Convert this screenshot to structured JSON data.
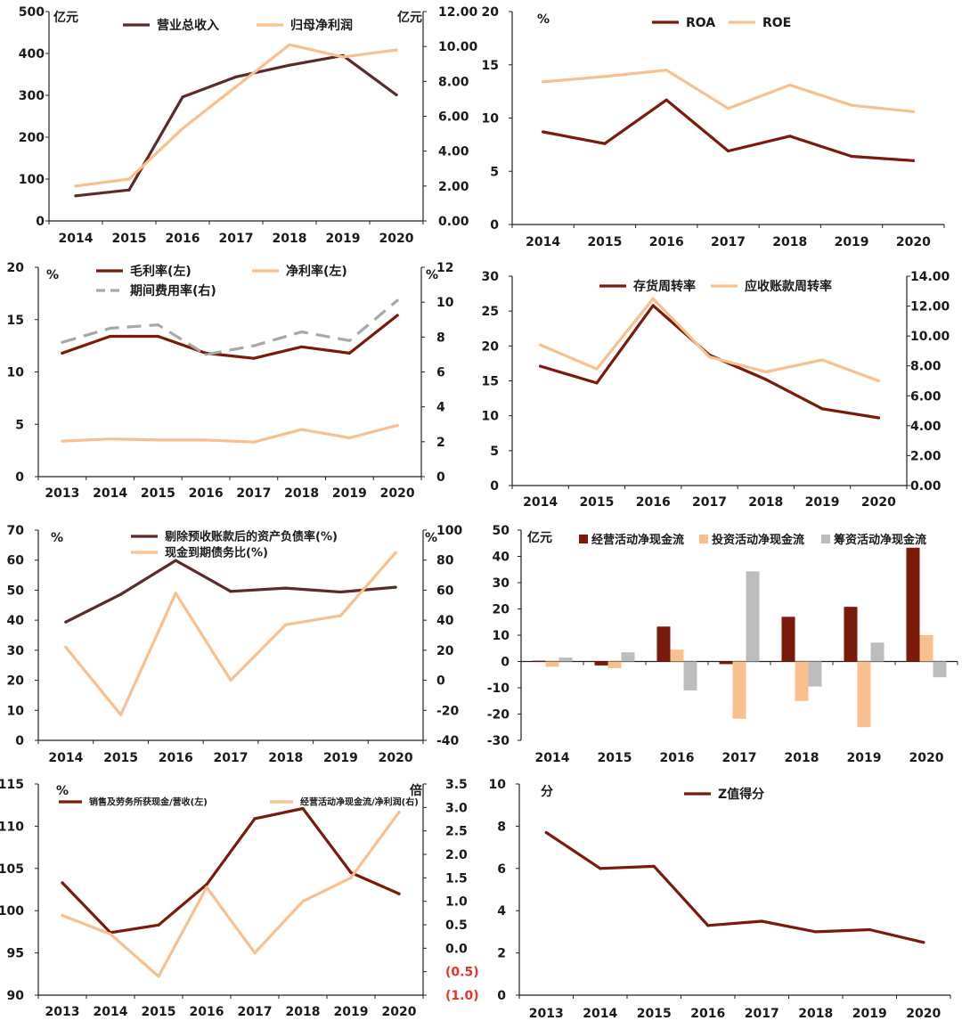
{
  "colors": {
    "dark_red": "#7a1a0a",
    "maroon": "#5c2a2a",
    "peach": "#f8c08e",
    "gray": "#bdbdbd",
    "gray_dash": "#a8a8a8",
    "neg_red": "#e8322a",
    "axis": "#222222"
  },
  "chart_data": [
    {
      "id": "revenue-profit",
      "type": "line",
      "x": [
        "2014",
        "2015",
        "2016",
        "2017",
        "2018",
        "2019",
        "2020"
      ],
      "unit_left": "亿元",
      "unit_right": "亿元",
      "yleft": {
        "min": 0,
        "max": 500,
        "ticks": [
          "0",
          "100",
          "200",
          "300",
          "400",
          "500"
        ]
      },
      "yright": {
        "min": 0,
        "max": 12,
        "ticks": [
          "0.00",
          "2.00",
          "4.00",
          "6.00",
          "8.00",
          "10.00",
          "12.00"
        ]
      },
      "series": [
        {
          "name": "营业总收入",
          "axis": "left",
          "color": "maroon",
          "values": [
            60,
            74,
            296,
            344,
            372,
            395,
            301
          ]
        },
        {
          "name": "归母净利润",
          "axis": "right",
          "color": "peach",
          "values": [
            2.0,
            2.4,
            5.3,
            7.7,
            10.1,
            9.4,
            9.8
          ]
        }
      ]
    },
    {
      "id": "roa-roe",
      "type": "line",
      "x": [
        "2014",
        "2015",
        "2016",
        "2017",
        "2018",
        "2019",
        "2020"
      ],
      "unit_left": "%",
      "yleft": {
        "min": 0,
        "max": 20,
        "ticks": [
          "0",
          "5",
          "10",
          "15",
          "20"
        ]
      },
      "series": [
        {
          "name": "ROA",
          "axis": "left",
          "color": "dark_red",
          "values": [
            8.7,
            7.6,
            11.7,
            6.9,
            8.3,
            6.4,
            6.0
          ]
        },
        {
          "name": "ROE",
          "axis": "left",
          "color": "peach",
          "values": [
            13.4,
            13.9,
            14.5,
            10.9,
            13.1,
            11.2,
            10.6
          ]
        }
      ]
    },
    {
      "id": "margins",
      "type": "line",
      "x": [
        "2013",
        "2014",
        "2015",
        "2016",
        "2017",
        "2018",
        "2019",
        "2020"
      ],
      "unit_left": "%",
      "unit_right": "%",
      "yleft": {
        "min": 0,
        "max": 20,
        "ticks": [
          "0",
          "5",
          "10",
          "15",
          "20"
        ]
      },
      "yright": {
        "min": 0,
        "max": 12,
        "ticks": [
          "0",
          "2",
          "4",
          "6",
          "8",
          "10",
          "12"
        ]
      },
      "series": [
        {
          "name": "毛利率(左)",
          "axis": "left",
          "color": "dark_red",
          "values": [
            11.8,
            13.4,
            13.4,
            11.8,
            11.3,
            12.4,
            11.8,
            15.4
          ]
        },
        {
          "name": "净利率(左)",
          "axis": "left",
          "color": "peach",
          "values": [
            3.4,
            3.6,
            3.5,
            3.5,
            3.3,
            4.5,
            3.7,
            4.9
          ]
        },
        {
          "name": "期间费用率(右)",
          "axis": "right",
          "color": "gray_dash",
          "dashed": true,
          "values": [
            7.7,
            8.5,
            8.7,
            7.0,
            7.5,
            8.3,
            7.8,
            10.1
          ]
        }
      ]
    },
    {
      "id": "turnover",
      "type": "line",
      "x": [
        "2014",
        "2015",
        "2016",
        "2017",
        "2018",
        "2019",
        "2020"
      ],
      "yleft": {
        "min": 0,
        "max": 30,
        "ticks": [
          "0",
          "5",
          "10",
          "15",
          "20",
          "25",
          "30"
        ]
      },
      "yright": {
        "min": 0,
        "max": 14,
        "ticks": [
          "0.00",
          "2.00",
          "4.00",
          "6.00",
          "8.00",
          "10.00",
          "12.00",
          "14.00"
        ]
      },
      "series": [
        {
          "name": "存货周转率",
          "axis": "left",
          "color": "dark_red",
          "values": [
            17.1,
            14.7,
            25.8,
            18.7,
            15.2,
            11.0,
            9.7
          ]
        },
        {
          "name": "应收账款周转率",
          "axis": "right",
          "color": "peach",
          "values": [
            9.4,
            7.8,
            12.5,
            8.6,
            7.6,
            8.4,
            7.0
          ]
        }
      ]
    },
    {
      "id": "debt",
      "type": "line",
      "x": [
        "2014",
        "2015",
        "2016",
        "2017",
        "2018",
        "2019",
        "2020"
      ],
      "unit_left": "%",
      "unit_right": "%",
      "yleft": {
        "min": 0,
        "max": 70,
        "ticks": [
          "0",
          "10",
          "20",
          "30",
          "40",
          "50",
          "60",
          "70"
        ]
      },
      "yright": {
        "min": -40,
        "max": 100,
        "ticks": [
          "-40",
          "-20",
          "0",
          "20",
          "40",
          "60",
          "80",
          "100"
        ]
      },
      "series": [
        {
          "name": "剔除预收账款后的资产负债率(%)",
          "axis": "left",
          "color": "maroon",
          "values": [
            39.4,
            48.6,
            59.9,
            49.6,
            50.7,
            49.4,
            51.0
          ]
        },
        {
          "name": "现金到期债务比(%)",
          "axis": "right",
          "color": "peach",
          "values": [
            22,
            -23,
            58,
            0,
            37,
            43,
            85
          ]
        }
      ]
    },
    {
      "id": "cashflow",
      "type": "bar",
      "categories": [
        "2014",
        "2015",
        "2016",
        "2017",
        "2018",
        "2019",
        "2020"
      ],
      "unit_left": "亿元",
      "yleft": {
        "min": -30,
        "max": 50,
        "ticks": [
          "-30",
          "-20",
          "-10",
          "0",
          "10",
          "20",
          "30",
          "40",
          "50"
        ]
      },
      "series": [
        {
          "name": "经营活动净现金流",
          "color": "dark_red",
          "values": [
            0.3,
            -1.5,
            13.3,
            -1.0,
            17.0,
            20.8,
            43.3
          ]
        },
        {
          "name": "投资活动净现金流",
          "color": "peach",
          "values": [
            -2.0,
            -2.5,
            4.5,
            -21.8,
            -15.0,
            -25.0,
            10.0
          ]
        },
        {
          "name": "筹资活动净现金流",
          "color": "gray",
          "values": [
            1.5,
            3.5,
            -11.0,
            34.3,
            -9.5,
            7.2,
            -6.0
          ]
        }
      ]
    },
    {
      "id": "cash-ratio",
      "type": "line",
      "x": [
        "2013",
        "2014",
        "2015",
        "2016",
        "2017",
        "2018",
        "2019",
        "2020"
      ],
      "unit_left": "%",
      "unit_right": "倍",
      "yleft": {
        "min": 90,
        "max": 115,
        "ticks": [
          "90",
          "95",
          "100",
          "105",
          "110",
          "115"
        ]
      },
      "yright": {
        "min": -1.0,
        "max": 3.5,
        "ticks": [
          "(1.0)",
          "(0.5)",
          "0.0",
          "0.5",
          "1.0",
          "1.5",
          "2.0",
          "2.5",
          "3.0",
          "3.5"
        ],
        "negative_tick_color": "neg_red"
      },
      "series": [
        {
          "name": "销售及劳务所获现金/营收(左)",
          "axis": "left",
          "color": "dark_red",
          "values": [
            103.3,
            97.4,
            98.3,
            103.1,
            110.9,
            112.1,
            104.5,
            102.0
          ]
        },
        {
          "name": "经营活动净现金流/净利润(右)",
          "axis": "right",
          "color": "peach",
          "values": [
            0.7,
            0.3,
            -0.6,
            1.3,
            -0.1,
            1.0,
            1.5,
            2.9
          ]
        }
      ]
    },
    {
      "id": "z-score",
      "type": "line",
      "x": [
        "2013",
        "2014",
        "2015",
        "2016",
        "2017",
        "2018",
        "2019",
        "2020"
      ],
      "unit_left": "分",
      "yleft": {
        "min": 0,
        "max": 10,
        "ticks": [
          "0",
          "2",
          "4",
          "6",
          "8",
          "10"
        ]
      },
      "series": [
        {
          "name": "Z值得分",
          "axis": "left",
          "color": "dark_red",
          "values": [
            7.7,
            6.0,
            6.1,
            3.3,
            3.5,
            3.0,
            3.1,
            2.5
          ]
        }
      ]
    }
  ]
}
